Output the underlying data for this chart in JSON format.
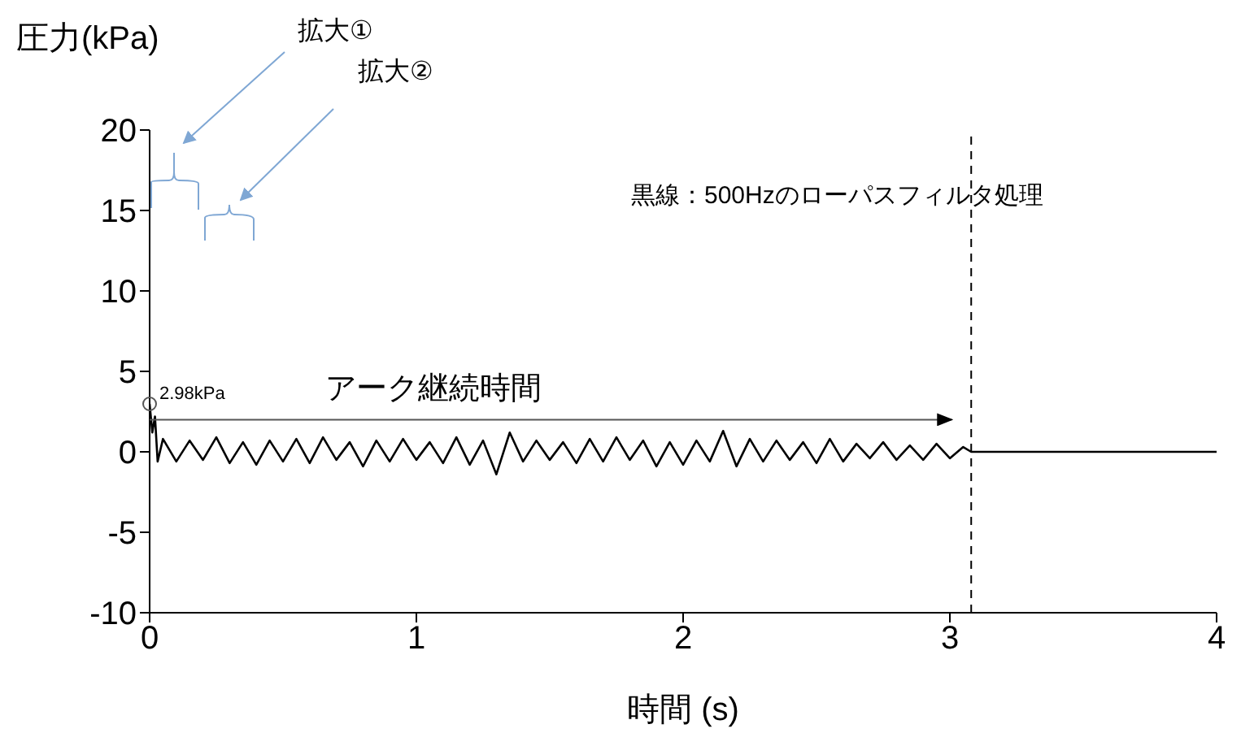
{
  "chart_data": {
    "type": "line",
    "xlabel": "時間 (s)",
    "ylabel": "圧力(kPa)",
    "series": [
      {
        "color": "#000000",
        "x": [
          0,
          0.01,
          0.02,
          0.03,
          0.05,
          0.1,
          0.15,
          0.2,
          0.25,
          0.3,
          0.35,
          0.4,
          0.45,
          0.5,
          0.55,
          0.6,
          0.65,
          0.7,
          0.75,
          0.8,
          0.85,
          0.9,
          0.95,
          1,
          1.05,
          1.1,
          1.15,
          1.2,
          1.25,
          1.3,
          1.35,
          1.4,
          1.45,
          1.5,
          1.55,
          1.6,
          1.65,
          1.7,
          1.75,
          1.8,
          1.85,
          1.9,
          1.95,
          2,
          2.05,
          2.1,
          2.15,
          2.2,
          2.25,
          2.3,
          2.35,
          2.4,
          2.45,
          2.5,
          2.55,
          2.6,
          2.65,
          2.7,
          2.75,
          2.8,
          2.85,
          2.9,
          2.95,
          3,
          3.05,
          3.08,
          3.5,
          4
        ],
        "values": [
          2.98,
          1.2,
          2.2,
          -0.6,
          0.8,
          -0.6,
          0.7,
          -0.5,
          0.9,
          -0.7,
          0.6,
          -0.8,
          0.7,
          -0.6,
          0.8,
          -0.7,
          0.9,
          -0.5,
          0.6,
          -0.9,
          0.7,
          -0.6,
          0.8,
          -0.5,
          0.6,
          -0.7,
          0.9,
          -0.8,
          0.7,
          -1.4,
          1.2,
          -0.6,
          0.7,
          -0.5,
          0.6,
          -0.7,
          0.8,
          -0.6,
          0.9,
          -0.5,
          0.7,
          -0.9,
          0.6,
          -0.8,
          0.7,
          -0.6,
          1.3,
          -0.9,
          0.8,
          -0.6,
          0.7,
          -0.5,
          0.6,
          -0.7,
          0.8,
          -0.6,
          0.5,
          -0.4,
          0.6,
          -0.5,
          0.4,
          -0.5,
          0.5,
          -0.4,
          0.3,
          0,
          0,
          0
        ]
      }
    ],
    "xlim": [
      0,
      4
    ],
    "xticks": [
      0,
      1,
      2,
      3,
      4
    ],
    "ylim": [
      -10,
      20
    ],
    "yticks": [
      -10,
      -5,
      0,
      5,
      10,
      15,
      20
    ],
    "grid": false,
    "legend": false,
    "marker": "none",
    "line_style": "solid",
    "ref_lines": [
      {
        "axis": "x",
        "value": 3.08,
        "color": "#000000",
        "line_style": "dashed"
      }
    ],
    "annotations": [
      "拡大①",
      "拡大②",
      "黒線：500Hzのローパスフィルタ処理",
      "アーク継続時間",
      {
        "text": "2.98kPa",
        "x": 0,
        "y": 2.98
      }
    ]
  }
}
